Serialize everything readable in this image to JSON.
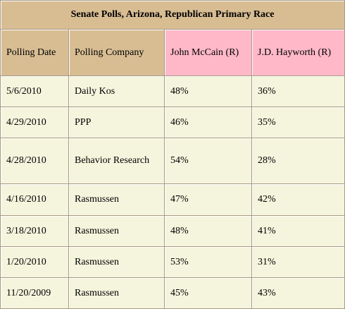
{
  "title": "Senate Polls, Arizona, Republican Primary Race",
  "columns": [
    "Polling Date",
    "Polling Company",
    "John McCain (R)",
    "J.D. Hayworth (R)"
  ],
  "rows": [
    {
      "date": "5/6/2010",
      "company": "Daily Kos",
      "mccain": "48%",
      "hayworth": "36%"
    },
    {
      "date": "4/29/2010",
      "company": "PPP",
      "mccain": "46%",
      "hayworth": "35%"
    },
    {
      "date": "4/28/2010",
      "company": "Behavior Research",
      "mccain": "54%",
      "hayworth": "28%"
    },
    {
      "date": "4/16/2010",
      "company": "Rasmussen",
      "mccain": "47%",
      "hayworth": "42%"
    },
    {
      "date": "3/18/2010",
      "company": "Rasmussen",
      "mccain": "48%",
      "hayworth": "41%"
    },
    {
      "date": "1/20/2010",
      "company": "Rasmussen",
      "mccain": "53%",
      "hayworth": "31%"
    },
    {
      "date": "11/20/2009",
      "company": "Rasmussen",
      "mccain": "45%",
      "hayworth": "43%"
    }
  ],
  "colors": {
    "header_tan": "#d8bd93",
    "header_pink": "#ffb8c8",
    "body_cream": "#f5f5de",
    "border": "#a89a82"
  }
}
